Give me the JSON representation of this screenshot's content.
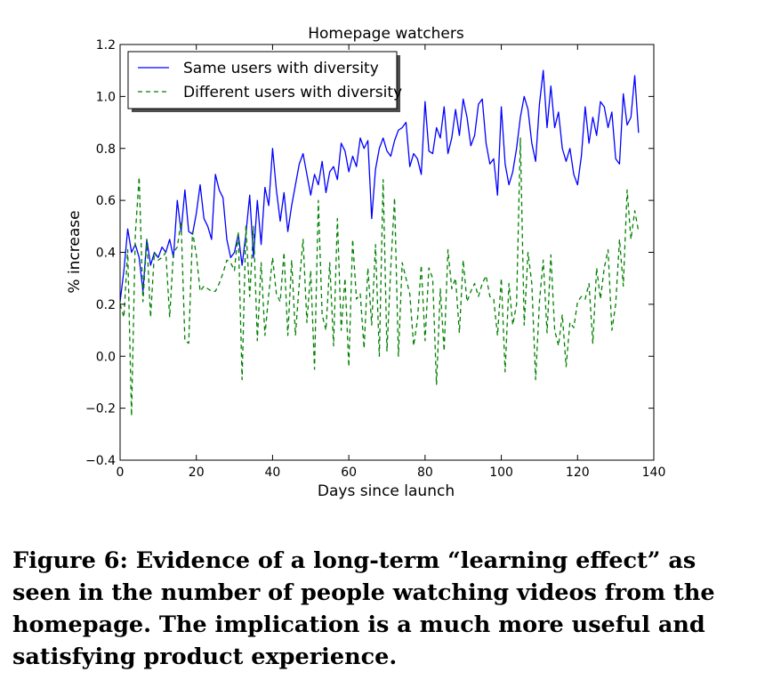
{
  "caption": "Figure 6: Evidence of a long-term “learning effect” as seen in the number of people watching videos from the homepage. The implication is a much more useful and satisfying product experience.",
  "chart_data": {
    "type": "line",
    "title": "Homepage watchers",
    "xlabel": "Days since launch",
    "ylabel": "% increase",
    "xlim": [
      0,
      140
    ],
    "ylim": [
      -0.4,
      1.2
    ],
    "xticks": [
      "0",
      "20",
      "40",
      "60",
      "80",
      "100",
      "120",
      "140"
    ],
    "yticks": [
      "−0.4",
      "−0.2",
      "0.0",
      "0.2",
      "0.4",
      "0.6",
      "0.8",
      "1.0",
      "1.2"
    ],
    "xtick_values": [
      0,
      20,
      40,
      60,
      80,
      100,
      120,
      140
    ],
    "ytick_values": [
      -0.4,
      -0.2,
      0.0,
      0.2,
      0.4,
      0.6,
      0.8,
      1.0,
      1.2
    ],
    "grid": false,
    "legend_position": "top-left",
    "x": [
      0,
      1,
      2,
      3,
      4,
      5,
      6,
      7,
      8,
      9,
      10,
      11,
      12,
      13,
      14,
      15,
      16,
      17,
      18,
      19,
      20,
      21,
      22,
      23,
      24,
      25,
      26,
      27,
      28,
      29,
      30,
      31,
      32,
      33,
      34,
      35,
      36,
      37,
      38,
      39,
      40,
      41,
      42,
      43,
      44,
      45,
      46,
      47,
      48,
      49,
      50,
      51,
      52,
      53,
      54,
      55,
      56,
      57,
      58,
      59,
      60,
      61,
      62,
      63,
      64,
      65,
      66,
      67,
      68,
      69,
      70,
      71,
      72,
      73,
      74,
      75,
      76,
      77,
      78,
      79,
      80,
      81,
      82,
      83,
      84,
      85,
      86,
      87,
      88,
      89,
      90,
      91,
      92,
      93,
      94,
      95,
      96,
      97,
      98,
      99,
      100,
      101,
      102,
      103,
      104,
      105,
      106,
      107,
      108,
      109,
      110,
      111,
      112,
      113,
      114,
      115,
      116,
      117,
      118,
      119,
      120,
      121,
      122,
      123,
      124,
      125,
      126,
      127,
      128,
      129,
      130,
      131,
      132,
      133,
      134,
      135,
      136
    ],
    "series": [
      {
        "name": "Same users with diversity",
        "color": "#0000ff",
        "style": "solid",
        "values": [
          0.21,
          0.33,
          0.49,
          0.4,
          0.43,
          0.38,
          0.25,
          0.45,
          0.35,
          0.4,
          0.38,
          0.42,
          0.4,
          0.45,
          0.38,
          0.6,
          0.48,
          0.64,
          0.48,
          0.47,
          0.55,
          0.66,
          0.53,
          0.5,
          0.45,
          0.7,
          0.64,
          0.61,
          0.45,
          0.38,
          0.4,
          0.47,
          0.35,
          0.47,
          0.62,
          0.38,
          0.6,
          0.43,
          0.65,
          0.58,
          0.8,
          0.64,
          0.52,
          0.63,
          0.48,
          0.58,
          0.66,
          0.74,
          0.78,
          0.7,
          0.62,
          0.7,
          0.66,
          0.75,
          0.63,
          0.71,
          0.73,
          0.68,
          0.82,
          0.79,
          0.71,
          0.77,
          0.73,
          0.84,
          0.8,
          0.83,
          0.53,
          0.72,
          0.8,
          0.84,
          0.79,
          0.77,
          0.83,
          0.87,
          0.88,
          0.9,
          0.73,
          0.78,
          0.76,
          0.7,
          0.98,
          0.79,
          0.78,
          0.88,
          0.84,
          0.96,
          0.78,
          0.84,
          0.95,
          0.85,
          0.99,
          0.92,
          0.81,
          0.85,
          0.97,
          0.99,
          0.82,
          0.74,
          0.76,
          0.62,
          0.96,
          0.74,
          0.66,
          0.71,
          0.8,
          0.92,
          1.0,
          0.95,
          0.82,
          0.75,
          0.97,
          1.1,
          0.88,
          1.04,
          0.88,
          0.94,
          0.8,
          0.75,
          0.8,
          0.7,
          0.66,
          0.77,
          0.96,
          0.82,
          0.92,
          0.85,
          0.98,
          0.96,
          0.88,
          0.94,
          0.76,
          0.74,
          1.01,
          0.89,
          0.92,
          1.08,
          0.86
        ]
      },
      {
        "name": "Different users with diversity",
        "color": "#008000",
        "style": "dashed",
        "values": [
          0.2,
          0.15,
          0.41,
          -0.23,
          0.47,
          0.69,
          0.21,
          0.45,
          0.15,
          0.4,
          0.37,
          0.38,
          0.4,
          0.15,
          0.4,
          0.42,
          0.52,
          0.06,
          0.05,
          0.48,
          0.39,
          0.25,
          0.27,
          0.26,
          0.25,
          0.25,
          0.28,
          0.32,
          0.37,
          0.36,
          0.33,
          0.48,
          -0.09,
          0.5,
          0.23,
          0.5,
          0.06,
          0.36,
          0.08,
          0.24,
          0.38,
          0.24,
          0.21,
          0.4,
          0.08,
          0.37,
          0.08,
          0.28,
          0.45,
          0.13,
          0.33,
          -0.05,
          0.6,
          0.16,
          0.1,
          0.36,
          0.04,
          0.53,
          0.1,
          0.3,
          -0.04,
          0.45,
          0.22,
          0.24,
          0.03,
          0.34,
          0.12,
          0.43,
          0.0,
          0.68,
          0.02,
          0.34,
          0.61,
          0.0,
          0.36,
          0.3,
          0.24,
          0.04,
          0.14,
          0.35,
          0.06,
          0.34,
          0.3,
          -0.11,
          0.26,
          0.02,
          0.41,
          0.26,
          0.3,
          0.09,
          0.37,
          0.21,
          0.25,
          0.28,
          0.23,
          0.28,
          0.31,
          0.23,
          0.22,
          0.08,
          0.3,
          -0.06,
          0.28,
          0.12,
          0.2,
          0.84,
          0.12,
          0.4,
          0.28,
          -0.09,
          0.21,
          0.37,
          0.09,
          0.39,
          0.1,
          0.04,
          0.16,
          -0.04,
          0.13,
          0.11,
          0.21,
          0.23,
          0.22,
          0.28,
          0.05,
          0.34,
          0.22,
          0.34,
          0.41,
          0.1,
          0.2,
          0.45,
          0.27,
          0.64,
          0.45,
          0.56,
          0.48
        ]
      }
    ]
  }
}
